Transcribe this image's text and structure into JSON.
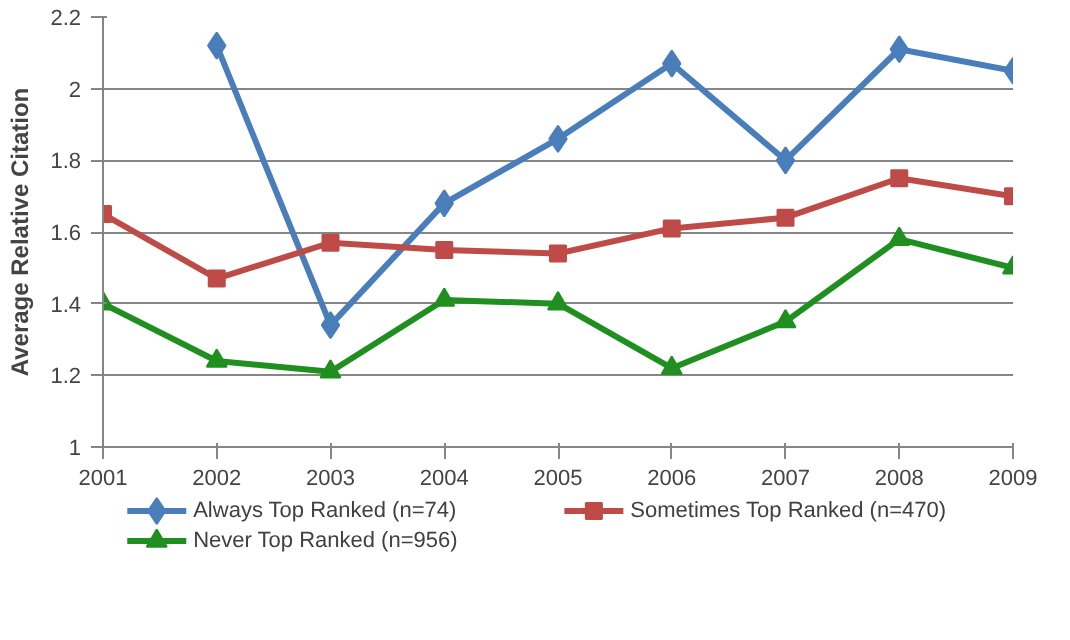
{
  "chart_data": {
    "type": "line",
    "ylabel": "Average Relative Citation",
    "x": [
      2001,
      2002,
      2003,
      2004,
      2005,
      2006,
      2007,
      2008,
      2009
    ],
    "xlim": [
      2001,
      2009
    ],
    "xticks": [
      2001,
      2002,
      2003,
      2004,
      2005,
      2006,
      2007,
      2008,
      2009
    ],
    "ylim": [
      1,
      2.2
    ],
    "yticks": [
      1,
      1.2,
      1.4,
      1.6,
      1.8,
      2,
      2.2
    ],
    "grid": "y",
    "legend": "bottom",
    "line_style": "solid",
    "series": [
      {
        "name": "Always Top Ranked (n=74)",
        "color": "#4a7ebb",
        "marker": "diamond",
        "values": [
          null,
          2.12,
          1.34,
          1.68,
          1.86,
          2.07,
          1.8,
          2.11,
          2.05
        ]
      },
      {
        "name": "Sometimes Top Ranked (n=470)",
        "color": "#be4b48",
        "marker": "square",
        "values": [
          1.65,
          1.47,
          1.57,
          1.55,
          1.54,
          1.61,
          1.64,
          1.75,
          1.7
        ]
      },
      {
        "name": "Never Top Ranked (n=956)",
        "color": "#1f8f1f",
        "marker": "triangle",
        "values": [
          1.4,
          1.24,
          1.21,
          1.41,
          1.4,
          1.22,
          1.35,
          1.58,
          1.5
        ]
      }
    ]
  }
}
